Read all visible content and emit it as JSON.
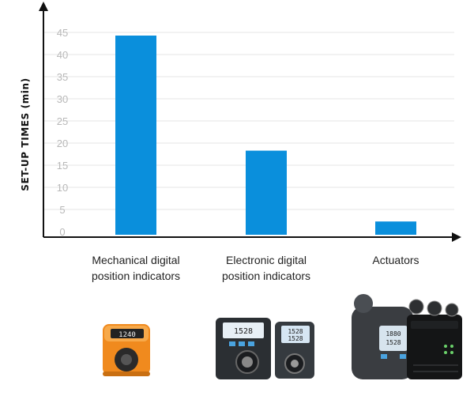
{
  "chart_data": {
    "type": "bar",
    "title": "",
    "ylabel": "SET-UP TIMES (min)",
    "xlabel": "",
    "categories": [
      [
        "Mechanical digital",
        "position indicators"
      ],
      [
        "Electronic digital",
        "position indicators"
      ],
      [
        "Actuators"
      ]
    ],
    "values": [
      45,
      19,
      3
    ],
    "ylim": [
      0,
      50
    ],
    "yticks": [
      0,
      5,
      10,
      15,
      20,
      25,
      30,
      35,
      40,
      45
    ],
    "grid": true,
    "bar_color": "#0a8fdc",
    "grid_color": "#e6e6e6",
    "tick_color": "#b8b8b8"
  },
  "images": [
    {
      "name": "mechanical-position-indicator-photo",
      "body": "#f08a1e",
      "window": "#222222"
    },
    {
      "name": "electronic-position-indicators-photo",
      "body": "#2b2f33",
      "display": "#e8f0f6"
    },
    {
      "name": "actuators-photo",
      "body": "#3a3d41",
      "accent": "#6bd26b"
    }
  ]
}
